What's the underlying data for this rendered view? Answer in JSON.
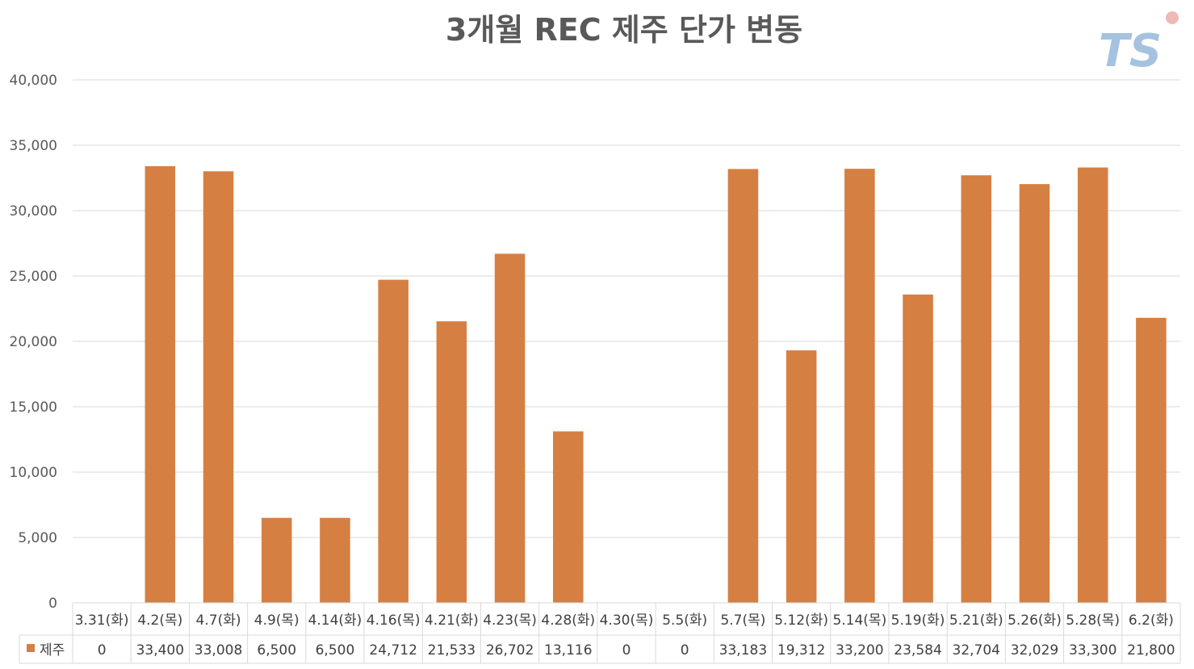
{
  "chart_data": {
    "type": "bar",
    "title": "3개월 REC 제주 단가 변동",
    "categories": [
      "3.31(화)",
      "4.2(목)",
      "4.7(화)",
      "4.9(목)",
      "4.14(화)",
      "4.16(목)",
      "4.21(화)",
      "4.23(목)",
      "4.28(화)",
      "4.30(목)",
      "5.5(화)",
      "5.7(목)",
      "5.12(화)",
      "5.14(목)",
      "5.19(화)",
      "5.21(화)",
      "5.26(화)",
      "5.28(목)",
      "6.2(화)"
    ],
    "series": [
      {
        "name": "제주",
        "color": "#d67f43",
        "values": [
          0,
          33400,
          33008,
          6500,
          6500,
          24712,
          21533,
          26702,
          13116,
          0,
          0,
          33183,
          19312,
          33200,
          23584,
          32704,
          32029,
          33300,
          21800
        ],
        "value_labels": [
          "0",
          "33,400",
          "33,008",
          "6,500",
          "6,500",
          "24,712",
          "21,533",
          "26,702",
          "13,116",
          "0",
          "0",
          "33,183",
          "19,312",
          "33,200",
          "23,584",
          "32,704",
          "32,029",
          "33,300",
          "21,800"
        ]
      }
    ],
    "ylim": [
      0,
      40000
    ],
    "yticks": [
      "0",
      "5,000",
      "10,000",
      "15,000",
      "20,000",
      "25,000",
      "30,000",
      "35,000",
      "40,000"
    ],
    "grid": true,
    "data_table": true,
    "xlabel": "",
    "ylabel": ""
  },
  "logo": {
    "text": "TS",
    "color": "#8fb3d9",
    "accent": "#e8a39a"
  }
}
